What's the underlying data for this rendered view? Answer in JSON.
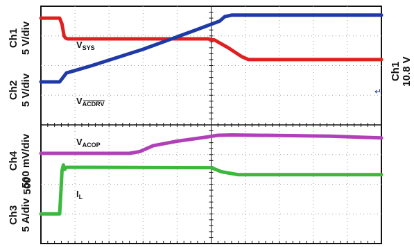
{
  "chart_data": {
    "type": "line",
    "x": {
      "divisions": 10,
      "range": [
        0,
        10
      ]
    },
    "channel_labels": {
      "ch1": "Ch1\n5 V/div",
      "ch2": "Ch2\n5 V/div",
      "ch4": "Ch4\n500 mV/div",
      "ch3": "Ch3\n5 A/div",
      "ch4_offset": "500"
    },
    "right_label": {
      "line1": "Ch1",
      "line2": "10.8 V"
    },
    "arrow_marker": "↵",
    "grid": true,
    "panels": [
      {
        "name": "top",
        "y_range": [
          0,
          4
        ],
        "series": [
          {
            "name": "VSYS",
            "label": {
              "main": "V",
              "sub": "SYS"
            },
            "color": "#e02020",
            "points": [
              [
                0,
                3.6
              ],
              [
                0.55,
                3.6
              ],
              [
                0.62,
                3.4
              ],
              [
                0.68,
                3.0
              ],
              [
                0.72,
                2.93
              ],
              [
                0.78,
                2.9
              ],
              [
                4.9,
                2.9
              ],
              [
                5.1,
                2.86
              ],
              [
                5.5,
                2.6
              ],
              [
                5.9,
                2.3
              ],
              [
                6.1,
                2.2
              ],
              [
                10,
                2.2
              ]
            ]
          },
          {
            "name": "VACDRV",
            "label": {
              "main": "V",
              "sub": "ACDRV",
              "overline": true
            },
            "color": "#1f3aa6",
            "points": [
              [
                0,
                1.45
              ],
              [
                0.55,
                1.45
              ],
              [
                0.65,
                1.6
              ],
              [
                0.75,
                1.75
              ],
              [
                1.5,
                2.0
              ],
              [
                3,
                2.55
              ],
              [
                4.5,
                3.18
              ],
              [
                5.25,
                3.5
              ],
              [
                5.4,
                3.65
              ],
              [
                5.6,
                3.7
              ],
              [
                10,
                3.7
              ]
            ]
          }
        ]
      },
      {
        "name": "bottom",
        "y_range": [
          0,
          4
        ],
        "series": [
          {
            "name": "VACOP",
            "label": {
              "main": "V",
              "sub": "ACOP"
            },
            "color": "#b040b8",
            "points": [
              [
                0,
                3.04
              ],
              [
                2.6,
                3.04
              ],
              [
                2.9,
                3.1
              ],
              [
                3.3,
                3.3
              ],
              [
                4.0,
                3.45
              ],
              [
                4.8,
                3.58
              ],
              [
                5.2,
                3.65
              ],
              [
                5.6,
                3.66
              ],
              [
                8.5,
                3.62
              ],
              [
                10,
                3.56
              ]
            ]
          },
          {
            "name": "IL",
            "label": {
              "main": "I",
              "sub": "L"
            },
            "color": "#3cb83c",
            "points": [
              [
                0,
                1.0
              ],
              [
                0.55,
                1.0
              ],
              [
                0.58,
                1.6
              ],
              [
                0.62,
                2.45
              ],
              [
                0.66,
                2.65
              ],
              [
                0.7,
                2.5
              ],
              [
                0.75,
                2.57
              ],
              [
                5.0,
                2.56
              ],
              [
                5.3,
                2.42
              ],
              [
                5.8,
                2.32
              ],
              [
                10,
                2.32
              ]
            ]
          }
        ]
      }
    ]
  }
}
